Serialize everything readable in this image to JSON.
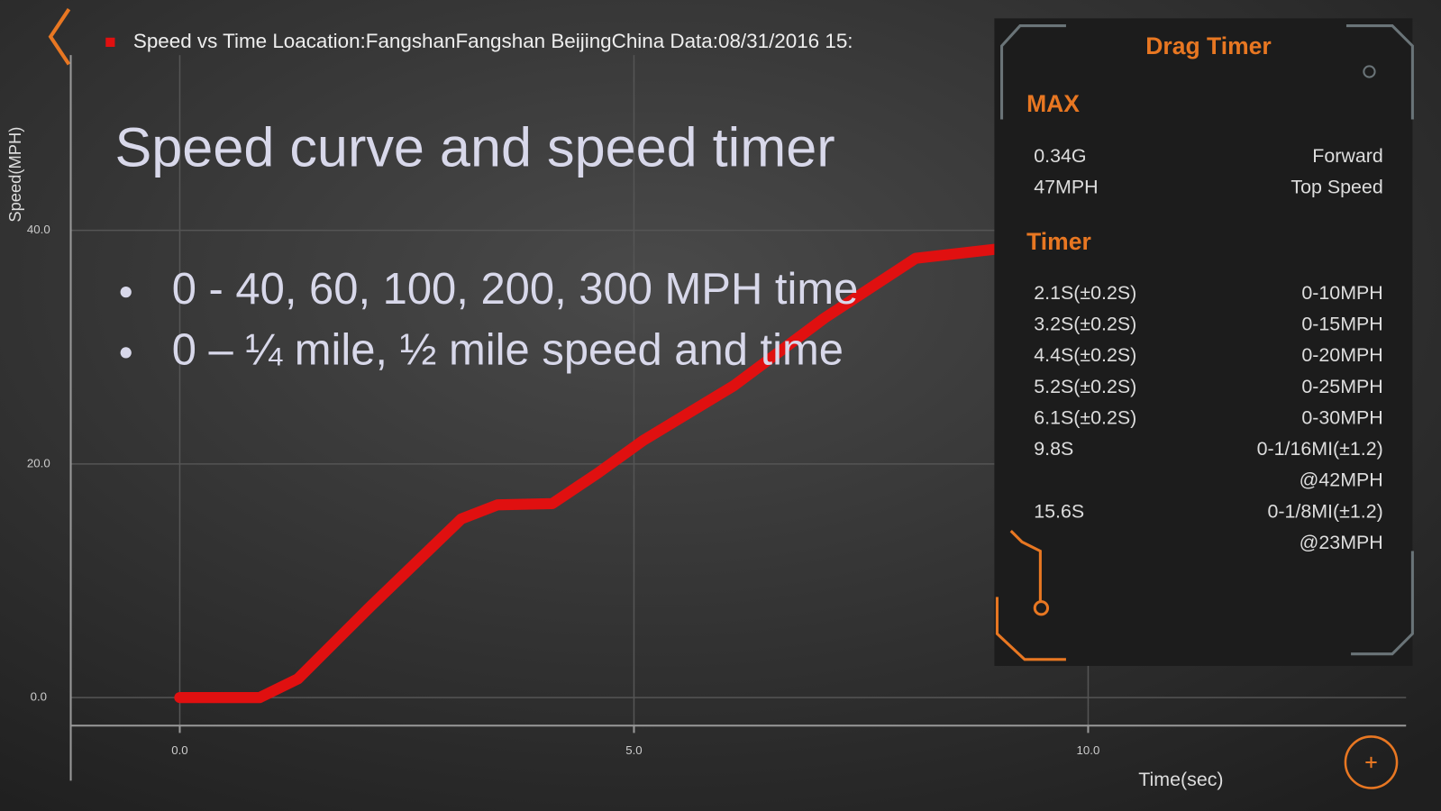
{
  "chart_data": {
    "type": "line",
    "xlabel": "Time(sec)",
    "ylabel": "Speed(MPH)",
    "x": [
      0,
      0.88,
      1.3,
      2.1,
      3.1,
      3.5,
      4.1,
      4.6,
      5.1,
      6.1,
      7.1,
      8.1,
      9.0
    ],
    "series": [
      {
        "name": "Speed vs Time Loacation:FangshanFangshan BeijingChina Data:08/31/2016 15:",
        "color": "#e01010",
        "values": [
          0,
          0,
          1.6,
          7.8,
          15.3,
          16.5,
          16.6,
          19.2,
          22,
          26.7,
          32.5,
          37.6,
          38.4
        ]
      }
    ],
    "xlim": [
      -1.2,
      13.5
    ],
    "ylim": [
      -2.4,
      55
    ],
    "xticks": [
      {
        "value": 0,
        "label": "0.0"
      },
      {
        "value": 5,
        "label": "5.0"
      },
      {
        "value": 10,
        "label": "10.0"
      }
    ],
    "yticks": [
      {
        "value": 0,
        "label": "0.0"
      },
      {
        "value": 20,
        "label": "20.0"
      },
      {
        "value": 40,
        "label": "40.0"
      }
    ],
    "grid": true
  },
  "slide": {
    "title": "Speed curve and speed timer",
    "bullets": [
      "0 - 40, 60, 100, 200, 300 MPH  time",
      "0 – ¼ mile, ½ mile speed and time"
    ]
  },
  "drag_timer": {
    "title": "Drag Timer",
    "max_heading": "MAX",
    "max_rows": [
      [
        "0.34G",
        "Forward"
      ],
      [
        "47MPH",
        "Top Speed"
      ]
    ],
    "timer_heading": "Timer",
    "timer_rows": [
      [
        "2.1S(±0.2S)",
        "0-10MPH"
      ],
      [
        "3.2S(±0.2S)",
        "0-15MPH"
      ],
      [
        "4.4S(±0.2S)",
        "0-20MPH"
      ],
      [
        "5.2S(±0.2S)",
        "0-25MPH"
      ],
      [
        "6.1S(±0.2S)",
        "0-30MPH"
      ],
      [
        "9.8S",
        "0-1/16MI(±1.2)",
        "@42MPH"
      ],
      [
        "15.6S",
        "0-1/8MI(±1.2)",
        "@23MPH"
      ]
    ]
  }
}
